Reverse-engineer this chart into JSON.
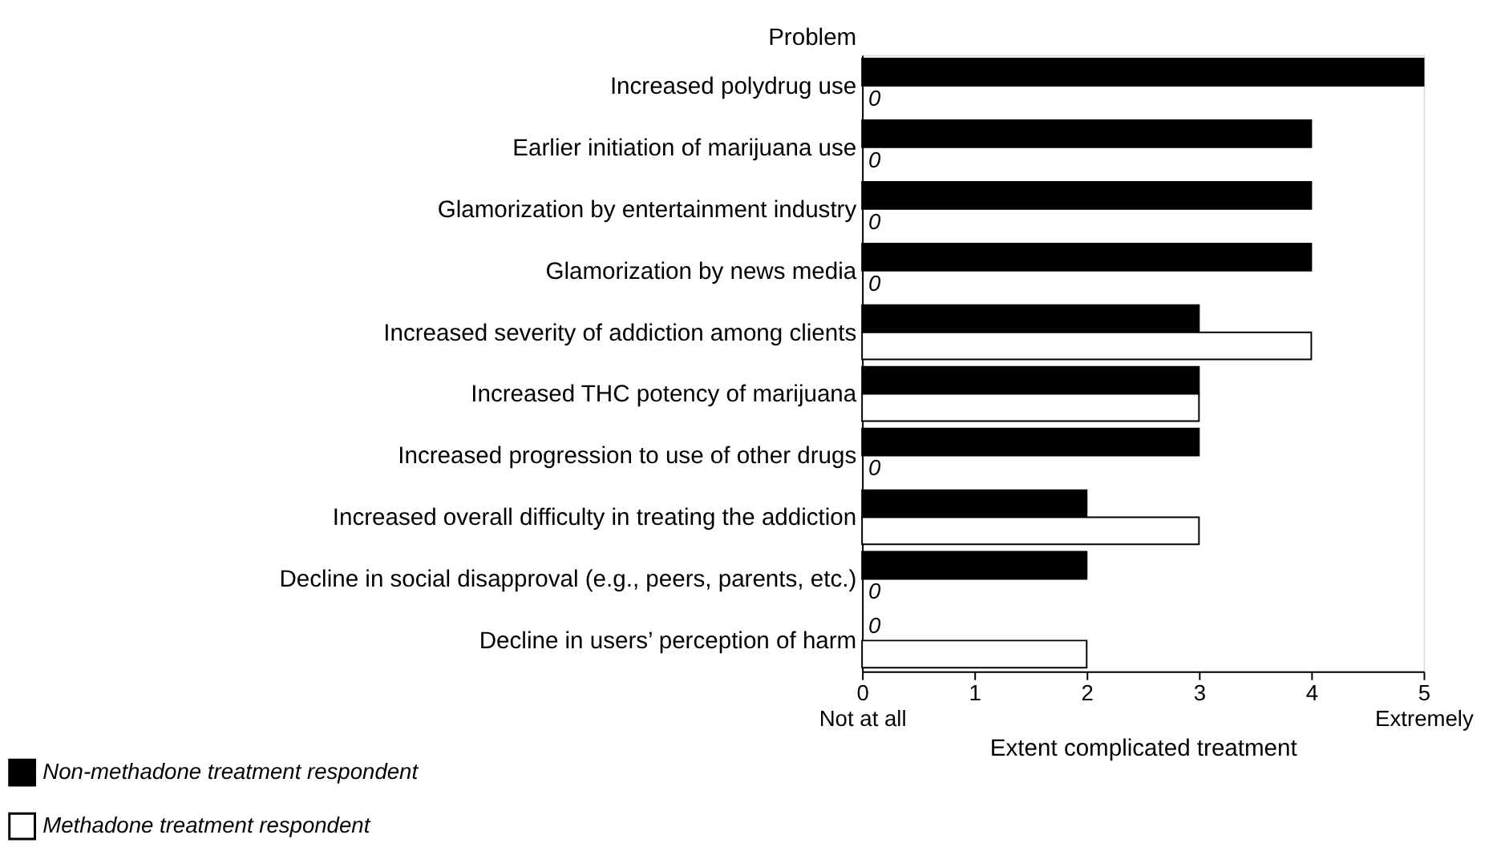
{
  "chart_data": {
    "type": "bar",
    "orientation": "horizontal",
    "ylabel": "Problem",
    "xlabel": "Extent complicated treatment",
    "categories": [
      "Increased polydrug use",
      "Earlier initiation of marijuana use",
      "Glamorization by entertainment industry",
      "Glamorization by news media",
      "Increased severity of addiction among clients",
      "Increased THC potency of marijuana",
      "Increased progression to use of other drugs",
      "Increased overall difficulty in treating the addiction",
      "Decline in social disapproval (e.g., peers, parents, etc.)",
      "Decline in users’ perception of harm"
    ],
    "series": [
      {
        "name": "Non-methadone treatment respondent",
        "color": "#000000",
        "values": [
          5,
          4,
          4,
          4,
          3,
          3,
          3,
          2,
          2,
          0
        ],
        "value_labels": [
          null,
          null,
          null,
          null,
          null,
          null,
          null,
          null,
          null,
          "0"
        ]
      },
      {
        "name": "Methadone treatment respondent",
        "color": "#ffffff",
        "values": [
          0,
          0,
          0,
          0,
          4,
          3,
          0,
          3,
          0,
          2
        ],
        "value_labels": [
          "0",
          "0",
          "0",
          "0",
          null,
          null,
          "0",
          null,
          "0",
          null
        ]
      }
    ],
    "xlim": [
      0,
      5
    ],
    "xticks": [
      {
        "value": 0,
        "label": "0\nNot at all"
      },
      1,
      2,
      3,
      4,
      {
        "value": 5,
        "label": "5\nExtremely"
      }
    ],
    "grid": false,
    "legend": "bottom left"
  }
}
